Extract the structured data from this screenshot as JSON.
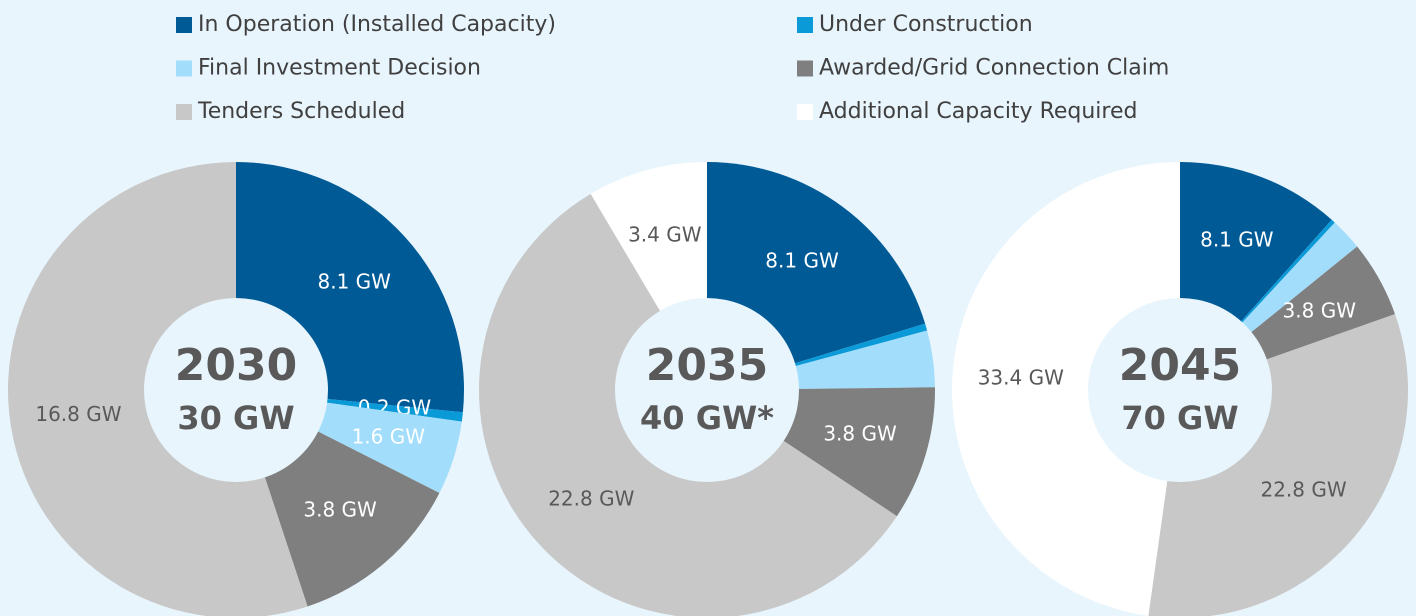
{
  "chart_data": [
    {
      "type": "pie",
      "title": "2030",
      "subtitle": "30 GW",
      "categories": [
        "In Operation (Installed Capacity)",
        "Under Construction",
        "Final Investment Decision",
        "Awarded/Grid Connection Claim",
        "Tenders Scheduled",
        "Additional Capacity Required"
      ],
      "values": [
        8.1,
        0.2,
        1.6,
        3.8,
        16.8,
        null
      ],
      "value_labels": [
        "8.1 GW",
        "0.2 GW",
        "1.6 GW",
        "3.8 GW",
        "16.8 GW",
        null
      ],
      "colors": [
        "#005a96",
        "#0a9ad8",
        "#a2ddfb",
        "#7f7f7f",
        "#c8c8c8",
        "#ffffff"
      ]
    },
    {
      "type": "pie",
      "title": "2035",
      "subtitle": "40 GW*",
      "categories": [
        "In Operation (Installed Capacity)",
        "Under Construction",
        "Final Investment Decision",
        "Awarded/Grid Connection Claim",
        "Tenders Scheduled",
        "Additional Capacity Required"
      ],
      "values": [
        8.1,
        0.2,
        1.6,
        3.8,
        22.8,
        3.4
      ],
      "value_labels": [
        "8.1 GW",
        null,
        null,
        "3.8 GW",
        "22.8 GW",
        "3.4 GW"
      ],
      "colors": [
        "#005a96",
        "#0a9ad8",
        "#a2ddfb",
        "#7f7f7f",
        "#c8c8c8",
        "#ffffff"
      ]
    },
    {
      "type": "pie",
      "title": "2045",
      "subtitle": "70 GW",
      "categories": [
        "In Operation (Installed Capacity)",
        "Under Construction",
        "Final Investment Decision",
        "Awarded/Grid Connection Claim",
        "Tenders Scheduled",
        "Additional Capacity Required"
      ],
      "values": [
        8.1,
        0.2,
        1.6,
        3.8,
        22.8,
        33.4
      ],
      "value_labels": [
        "8.1 GW",
        null,
        null,
        "3.8 GW",
        "22.8 GW",
        "33.4 GW"
      ],
      "colors": [
        "#005a96",
        "#0a9ad8",
        "#a2ddfb",
        "#7f7f7f",
        "#c8c8c8",
        "#ffffff"
      ]
    }
  ]
}
